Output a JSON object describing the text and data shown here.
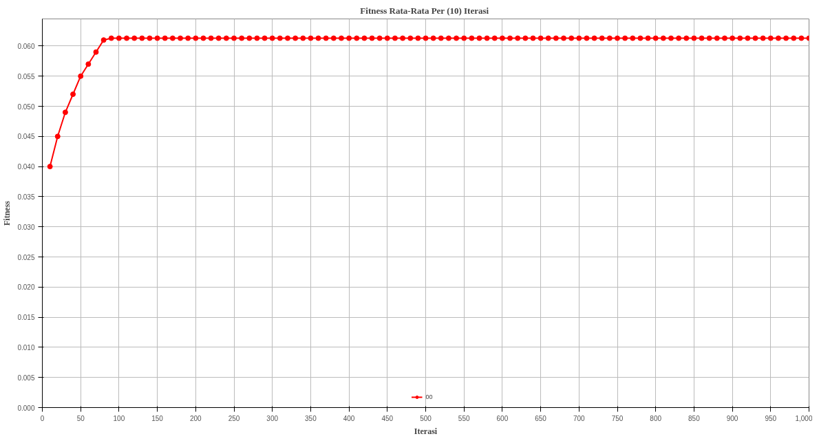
{
  "chart_data": {
    "type": "line",
    "title": "Fitness  Rata-Rata Per (10) Iterasi",
    "xlabel": "Iterasi",
    "ylabel": "Fitness",
    "x": [
      10,
      20,
      30,
      40,
      50,
      60,
      70,
      80,
      90,
      100,
      110,
      120,
      130,
      140,
      150,
      160,
      170,
      180,
      190,
      200,
      210,
      220,
      230,
      240,
      250,
      260,
      270,
      280,
      290,
      300,
      310,
      320,
      330,
      340,
      350,
      360,
      370,
      380,
      390,
      400,
      410,
      420,
      430,
      440,
      450,
      460,
      470,
      480,
      490,
      500,
      510,
      520,
      530,
      540,
      550,
      560,
      570,
      580,
      590,
      600,
      610,
      620,
      630,
      640,
      650,
      660,
      670,
      680,
      690,
      700,
      710,
      720,
      730,
      740,
      750,
      760,
      770,
      780,
      790,
      800,
      810,
      820,
      830,
      840,
      850,
      860,
      870,
      880,
      890,
      900,
      910,
      920,
      930,
      940,
      950,
      960,
      970,
      980,
      990,
      1000
    ],
    "series": [
      {
        "name": "00",
        "color": "#ff0000",
        "values": [
          0.04,
          0.045,
          0.049,
          0.052,
          0.055,
          0.057,
          0.059,
          0.061,
          0.0613,
          0.0613,
          0.0613,
          0.0613,
          0.0613,
          0.0613,
          0.0613,
          0.0613,
          0.0613,
          0.0613,
          0.0613,
          0.0613,
          0.0613,
          0.0613,
          0.0613,
          0.0613,
          0.0613,
          0.0613,
          0.0613,
          0.0613,
          0.0613,
          0.0613,
          0.0613,
          0.0613,
          0.0613,
          0.0613,
          0.0613,
          0.0613,
          0.0613,
          0.0613,
          0.0613,
          0.0613,
          0.0613,
          0.0613,
          0.0613,
          0.0613,
          0.0613,
          0.0613,
          0.0613,
          0.0613,
          0.0613,
          0.0613,
          0.0613,
          0.0613,
          0.0613,
          0.0613,
          0.0613,
          0.0613,
          0.0613,
          0.0613,
          0.0613,
          0.0613,
          0.0613,
          0.0613,
          0.0613,
          0.0613,
          0.0613,
          0.0613,
          0.0613,
          0.0613,
          0.0613,
          0.0613,
          0.0613,
          0.0613,
          0.0613,
          0.0613,
          0.0613,
          0.0613,
          0.0613,
          0.0613,
          0.0613,
          0.0613,
          0.0613,
          0.0613,
          0.0613,
          0.0613,
          0.0613,
          0.0613,
          0.0613,
          0.0613,
          0.0613,
          0.0613,
          0.0613,
          0.0613,
          0.0613,
          0.0613,
          0.0613,
          0.0613,
          0.0613,
          0.0613,
          0.0613,
          0.0613
        ]
      }
    ],
    "xlim": [
      0,
      1000
    ],
    "xticks": [
      0,
      50,
      100,
      150,
      200,
      250,
      300,
      350,
      400,
      450,
      500,
      550,
      600,
      650,
      700,
      750,
      800,
      850,
      900,
      950,
      {
        "value": 1000,
        "label": "1,000"
      }
    ],
    "ylim": [
      0,
      0.0645
    ],
    "yticks": [
      {
        "value": 0,
        "label": "0.000"
      },
      {
        "value": 0.005,
        "label": "0.005"
      },
      {
        "value": 0.01,
        "label": "0.010"
      },
      {
        "value": 0.015,
        "label": "0.015"
      },
      {
        "value": 0.02,
        "label": "0.020"
      },
      {
        "value": 0.025,
        "label": "0.025"
      },
      {
        "value": 0.03,
        "label": "0.030"
      },
      {
        "value": 0.035,
        "label": "0.035"
      },
      {
        "value": 0.04,
        "label": "0.040"
      },
      {
        "value": 0.045,
        "label": "0.045"
      },
      {
        "value": 0.05,
        "label": "0.050"
      },
      {
        "value": 0.055,
        "label": "0.055"
      },
      {
        "value": 0.06,
        "label": "0.060"
      }
    ],
    "grid": true,
    "legend": "bottom",
    "marker": "circle",
    "line_style": "solid"
  }
}
